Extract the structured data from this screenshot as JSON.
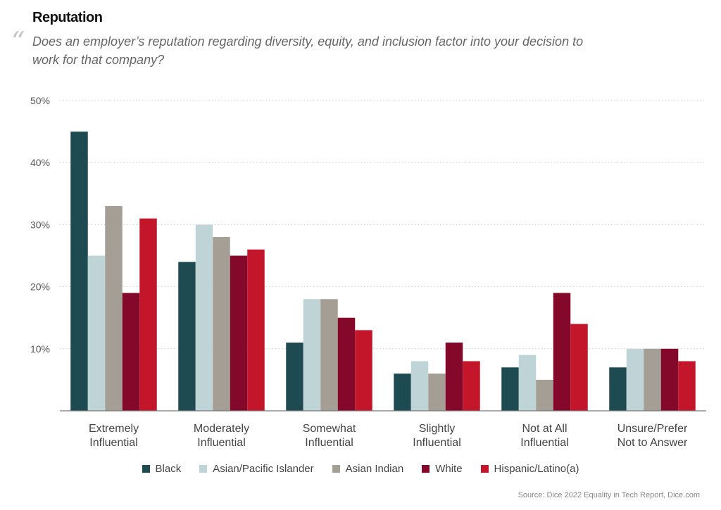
{
  "header": {
    "title": "Reputation",
    "quote_mark": "“",
    "question": "Does an employer’s reputation regarding diversity, equity, and inclusion factor into your decision to work for that company?"
  },
  "source": "Source: Dice 2022 Equality in Tech Report, Dice.com",
  "chart_data": {
    "type": "bar",
    "title": "Reputation",
    "categories": [
      [
        "Extremely",
        "Influential"
      ],
      [
        "Moderately",
        "Influential"
      ],
      [
        "Somewhat",
        "Influential"
      ],
      [
        "Slightly",
        "Influential"
      ],
      [
        "Not at All",
        "Influential"
      ],
      [
        "Unsure/Prefer",
        "Not to Answer"
      ]
    ],
    "series": [
      {
        "name": "Black",
        "color": "#1e4b52",
        "values": [
          45,
          24,
          11,
          6,
          7,
          7
        ]
      },
      {
        "name": "Asian/Pacific Islander",
        "color": "#bfd4d7",
        "values": [
          25,
          30,
          18,
          8,
          9,
          10
        ]
      },
      {
        "name": "Asian Indian",
        "color": "#a59e95",
        "values": [
          33,
          28,
          18,
          6,
          5,
          10
        ]
      },
      {
        "name": "White",
        "color": "#83082a",
        "values": [
          19,
          25,
          15,
          11,
          19,
          10
        ]
      },
      {
        "name": "Hispanic/Latino(a)",
        "color": "#c4162a",
        "values": [
          31,
          26,
          13,
          8,
          14,
          8
        ]
      }
    ],
    "yticks": [
      "10%",
      "20%",
      "30%",
      "40%",
      "50%"
    ],
    "ylim": [
      0,
      50
    ],
    "grid": true,
    "legend": "bottom-center"
  }
}
